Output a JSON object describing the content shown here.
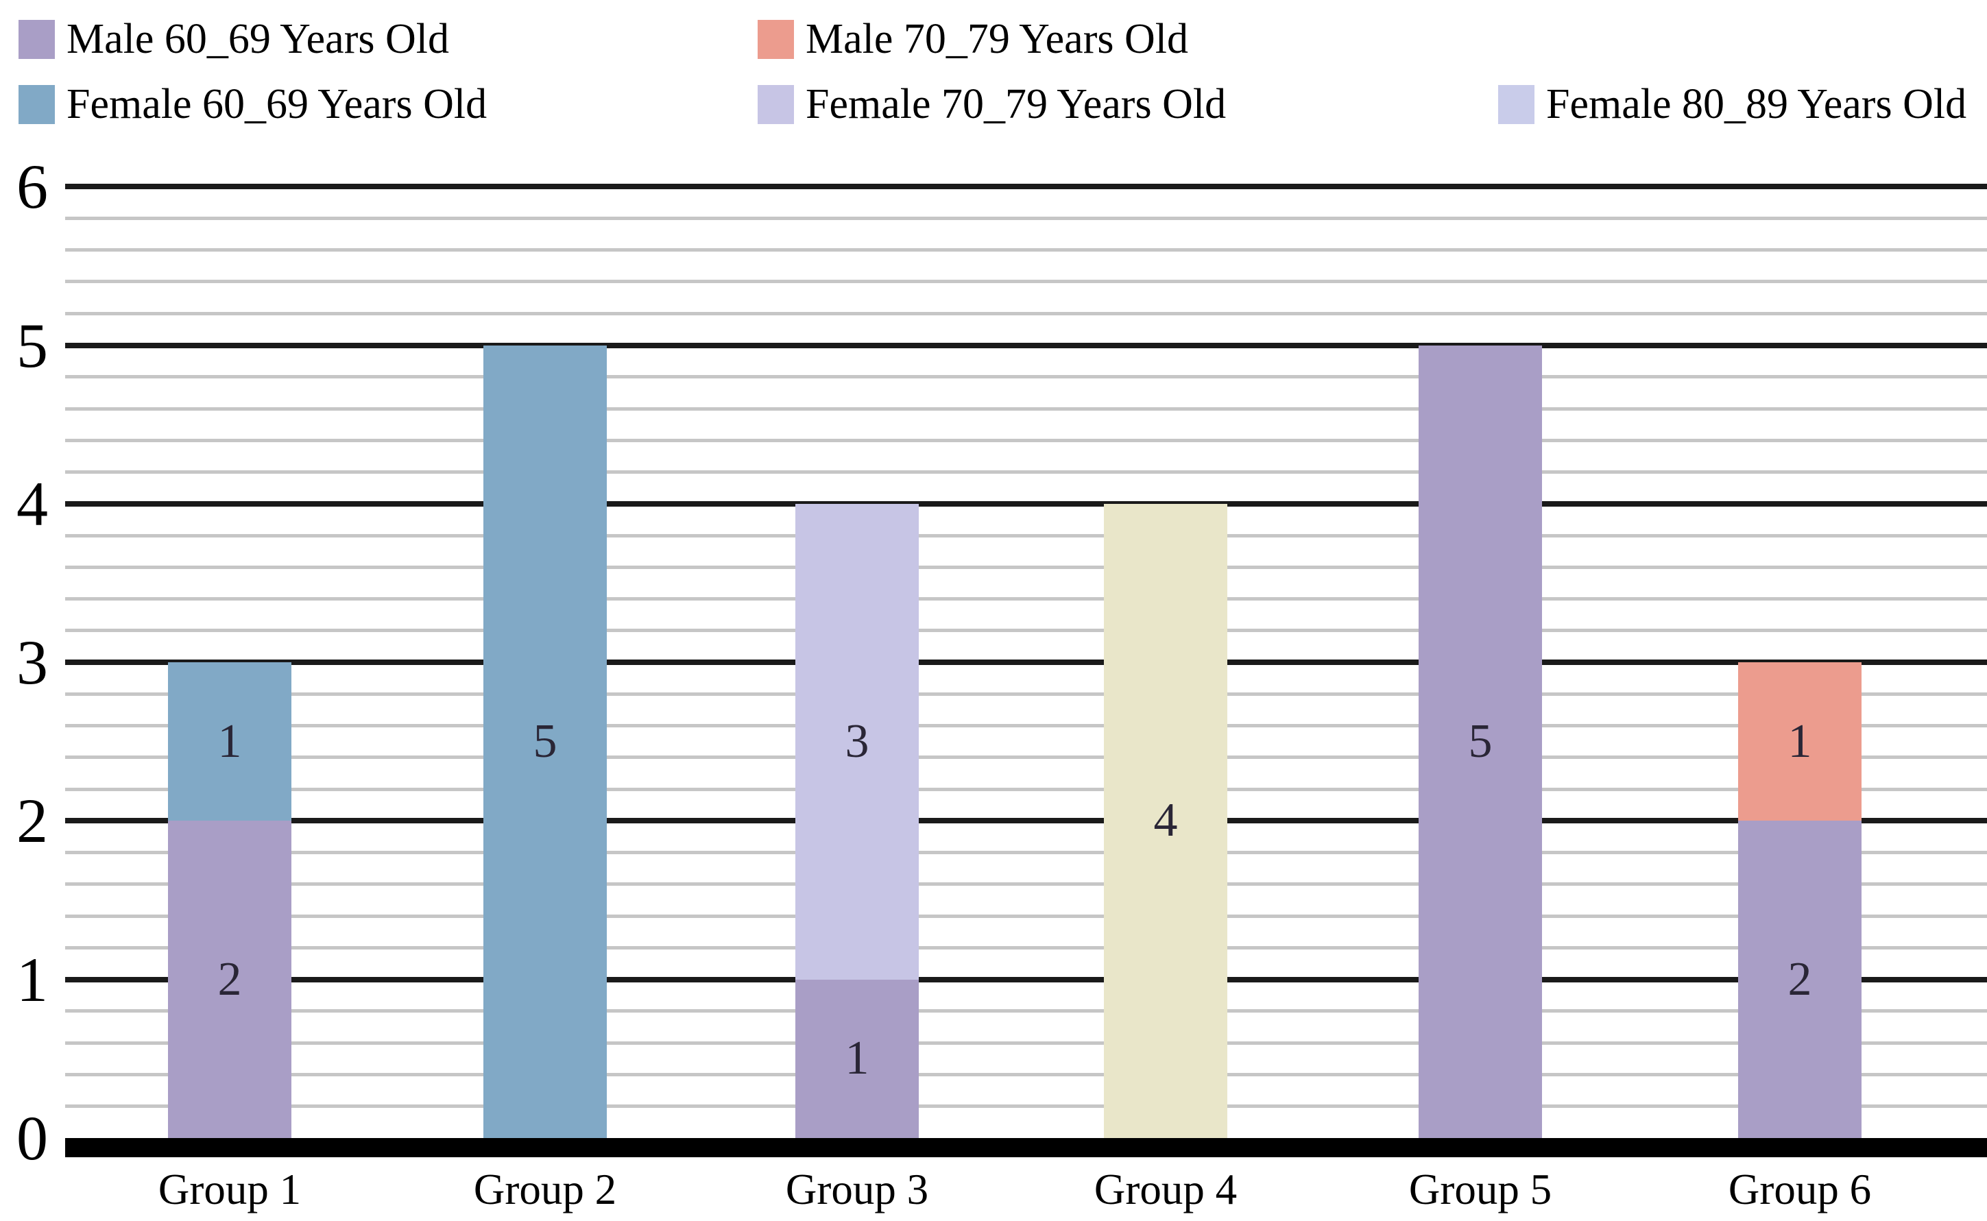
{
  "chart_data": {
    "type": "bar",
    "stacked": true,
    "categories": [
      "Group 1",
      "Group 2",
      "Group 3",
      "Group 4",
      "Group 5",
      "Group 6"
    ],
    "y_ticks": [
      0,
      1,
      2,
      3,
      4,
      5,
      6
    ],
    "ylim": [
      0,
      6
    ],
    "minor_grid_step": 0.2,
    "grid": "on",
    "legend_position": "top",
    "show_segment_labels": true,
    "legend": [
      {
        "label": "Male 60_69 Years Old",
        "color": "#A99EC6"
      },
      {
        "label": "Male 70_79 Years Old",
        "color": "#EC9C8E"
      },
      {
        "label": "Female 60_69 Years Old",
        "color": "#81A9C6"
      },
      {
        "label": "Female 70_79 Years Old",
        "color": "#C7C5E5"
      },
      {
        "label": "Female 80_89 Years Old",
        "color": "#C9CCEA"
      }
    ],
    "series": [
      {
        "name": "Male 60_69 Years Old",
        "color": "#A99EC6",
        "in_legend": true,
        "values": [
          2,
          0,
          1,
          0,
          5,
          2
        ]
      },
      {
        "name": "Male 70_79 Years Old",
        "color": "#EC9C8E",
        "in_legend": true,
        "values": [
          0,
          0,
          0,
          0,
          0,
          1
        ]
      },
      {
        "name": "Female 60_69 Years Old",
        "color": "#81A9C6",
        "in_legend": true,
        "values": [
          1,
          5,
          0,
          0,
          0,
          0
        ]
      },
      {
        "name": "Female 70_79 Years Old",
        "color": "#C7C5E5",
        "in_legend": true,
        "values": [
          0,
          0,
          3,
          0,
          0,
          0
        ]
      },
      {
        "name": "Female 80_89 Years Old",
        "color": "#C9CCEA",
        "in_legend": true,
        "values": [
          0,
          0,
          0,
          0,
          0,
          0
        ]
      },
      {
        "name": "",
        "color": "#E9E6C9",
        "in_legend": false,
        "values": [
          0,
          0,
          0,
          4,
          0,
          0
        ]
      }
    ],
    "stack_totals": [
      3,
      5,
      4,
      4,
      5,
      3
    ],
    "colors": {
      "grid_major": "#1A1A1A",
      "grid_minor": "#C6C6C6",
      "axis": "#000000",
      "bar_label": "#2A2636",
      "text": "#000000",
      "background": "#FFFFFF"
    }
  }
}
